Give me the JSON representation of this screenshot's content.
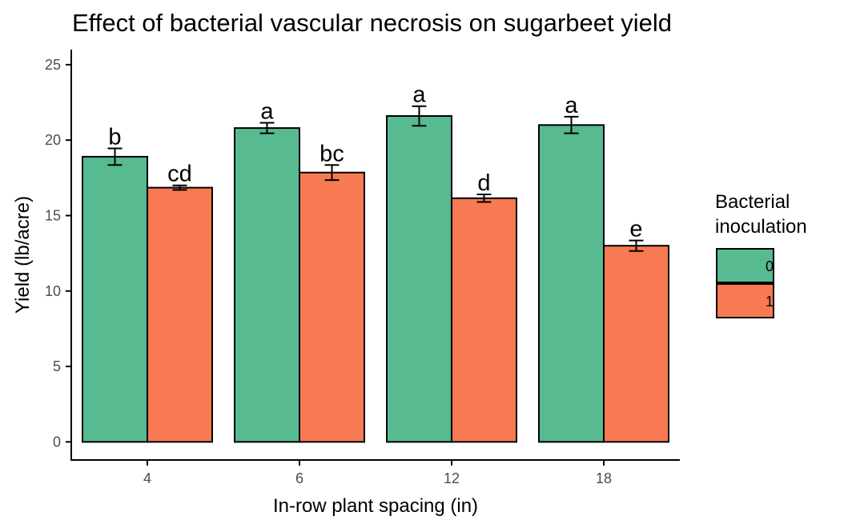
{
  "chart_data": {
    "type": "bar",
    "title": "Effect of bacterial vascular necrosis on sugarbeet yield",
    "xlabel": "In-row plant spacing (in)",
    "ylabel": "Yield (lb/acre)",
    "categories": [
      "4",
      "6",
      "12",
      "18"
    ],
    "ylim": [
      -1.2,
      26
    ],
    "yticks": [
      0,
      5,
      10,
      15,
      20,
      25
    ],
    "grid": false,
    "legend": {
      "title_lines": [
        "Bacterial",
        "inoculation"
      ],
      "placement": "right"
    },
    "series": [
      {
        "name": "0",
        "color": "#57BA91",
        "values": [
          18.9,
          20.8,
          21.6,
          21.0
        ],
        "errors": [
          0.55,
          0.35,
          0.65,
          0.55
        ],
        "labels": [
          "b",
          "a",
          "a",
          "a"
        ]
      },
      {
        "name": "1",
        "color": "#F77A52",
        "values": [
          16.85,
          17.85,
          16.15,
          13.0
        ],
        "errors": [
          0.15,
          0.5,
          0.25,
          0.35
        ],
        "labels": [
          "cd",
          "bc",
          "d",
          "e"
        ]
      }
    ]
  }
}
